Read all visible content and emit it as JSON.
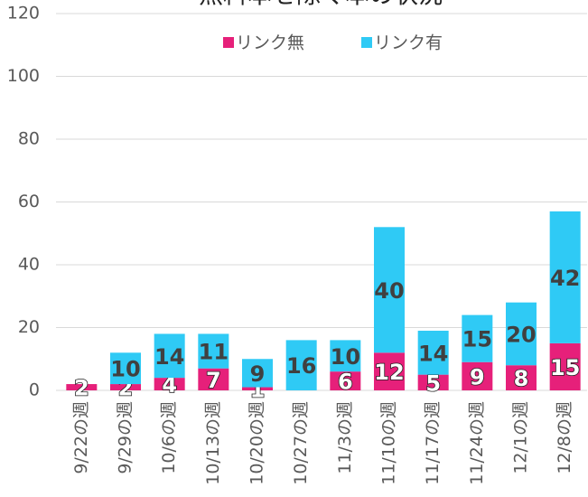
{
  "chart_data": {
    "type": "bar",
    "stacked": true,
    "title": "無料本を除く本の状況",
    "categories": [
      "9/22の週",
      "9/29の週",
      "10/6の週",
      "10/13の週",
      "10/20の週",
      "10/27の週",
      "11/3の週",
      "11/10の週",
      "11/17の週",
      "11/24の週",
      "12/1の週",
      "12/8の週"
    ],
    "series": [
      {
        "name": "リンク無",
        "color": "#e6207a",
        "values": [
          2,
          2,
          4,
          7,
          1,
          null,
          6,
          12,
          5,
          9,
          8,
          15
        ]
      },
      {
        "name": "リンク有",
        "color": "#2fcaf5",
        "values": [
          null,
          10,
          14,
          11,
          9,
          16,
          10,
          40,
          14,
          15,
          20,
          42
        ]
      }
    ],
    "ylim": [
      0,
      120
    ],
    "yticks": [
      0,
      20,
      40,
      60,
      80,
      100,
      120
    ],
    "grid": true,
    "legend": "top"
  }
}
